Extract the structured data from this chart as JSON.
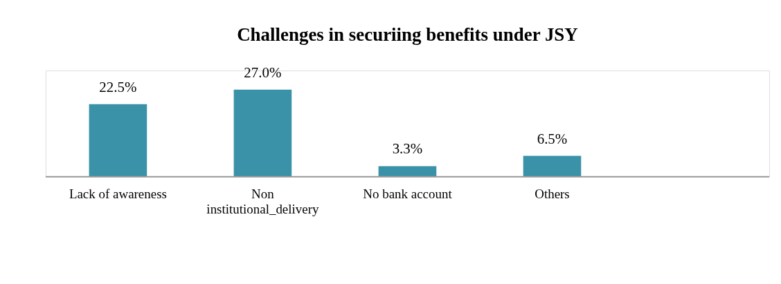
{
  "chart_data": {
    "type": "bar",
    "title": "Challenges in securiing benefits under JSY",
    "categories": [
      "Lack of awareness",
      "Non institutional_delivery",
      "No bank account",
      "Others"
    ],
    "values": [
      22.5,
      27.0,
      3.3,
      6.5
    ],
    "value_labels": [
      "22.5%",
      "27.0%",
      "3.3%",
      "6.5%"
    ],
    "color": "#3a92a8",
    "grid": false
  }
}
